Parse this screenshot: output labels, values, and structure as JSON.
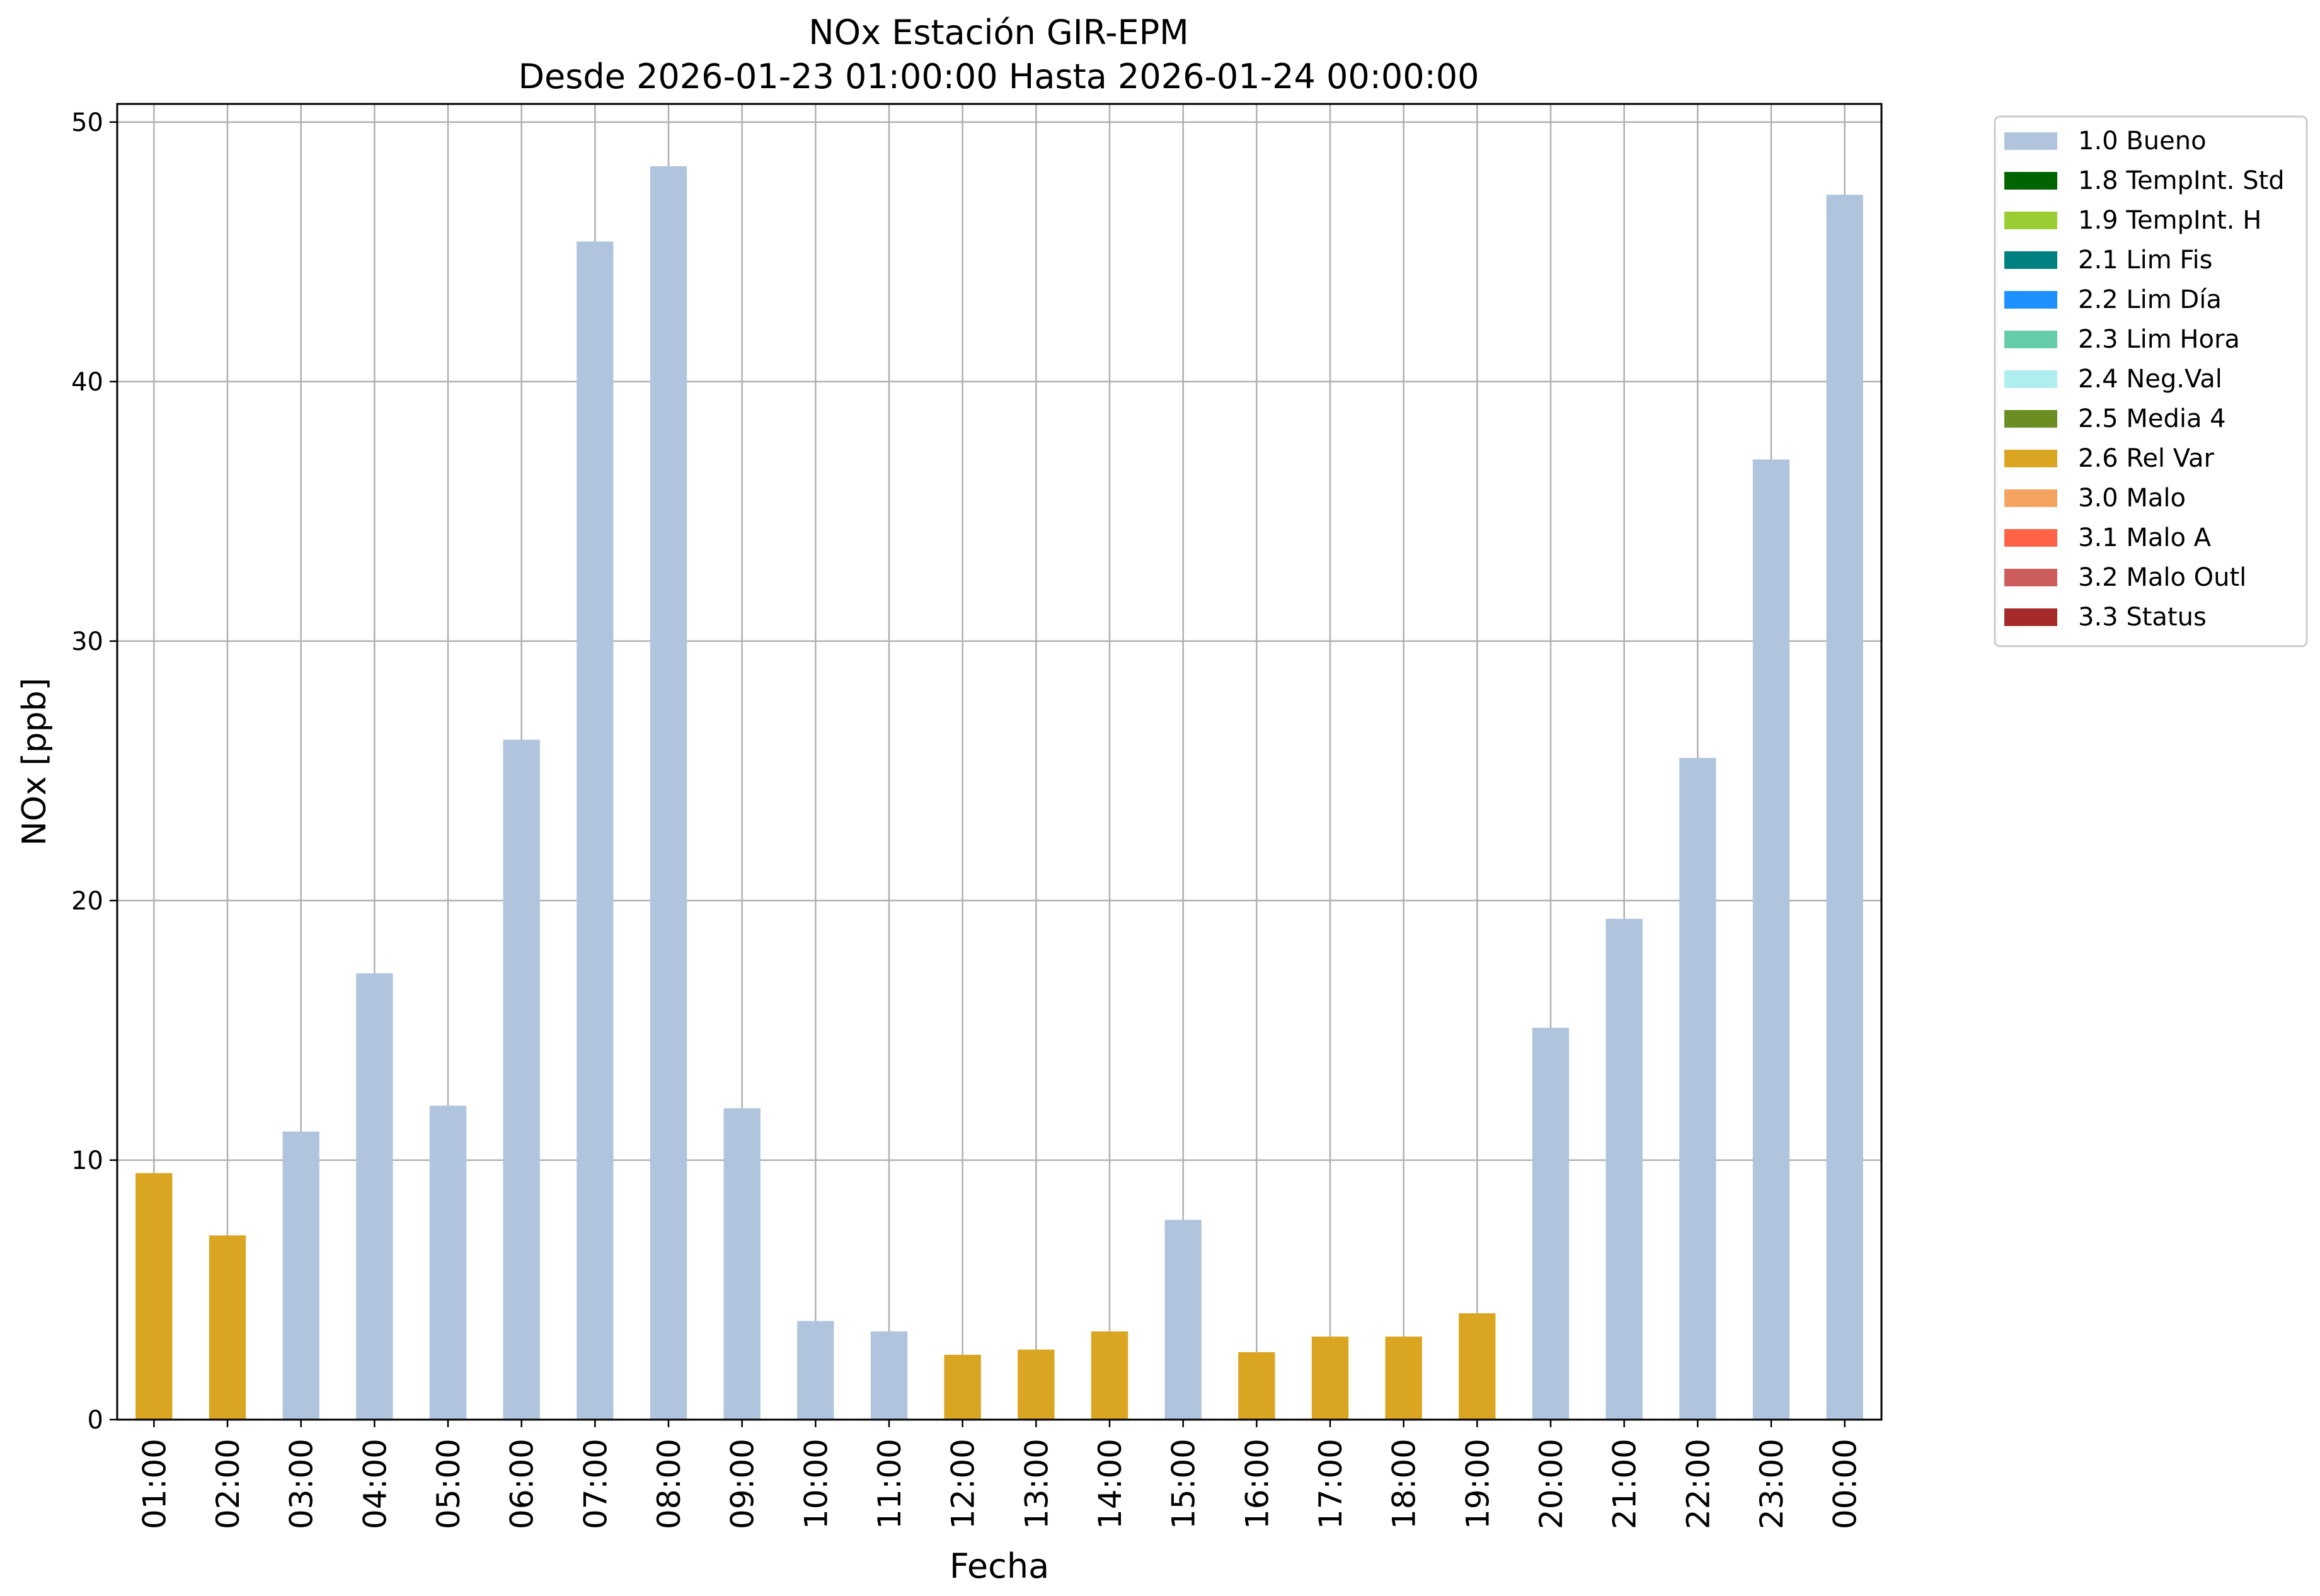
{
  "chart_data": {
    "type": "bar",
    "title": "NOx Estación GIR-EPM",
    "subtitle": "Desde 2026-01-23 01:00:00 Hasta 2026-01-24 00:00:00",
    "xlabel": "Fecha",
    "ylabel": "NOx [ppb]",
    "ylim": [
      0,
      50.7
    ],
    "yticks": [
      0,
      10,
      20,
      30,
      40,
      50
    ],
    "grid": true,
    "legend_position": "outside top-right",
    "categories": [
      "01:00",
      "02:00",
      "03:00",
      "04:00",
      "05:00",
      "06:00",
      "07:00",
      "08:00",
      "09:00",
      "10:00",
      "11:00",
      "12:00",
      "13:00",
      "14:00",
      "15:00",
      "16:00",
      "17:00",
      "18:00",
      "19:00",
      "20:00",
      "21:00",
      "22:00",
      "23:00",
      "00:00"
    ],
    "values": [
      9.5,
      7.1,
      11.1,
      17.2,
      12.1,
      26.2,
      45.4,
      48.3,
      12.0,
      3.8,
      3.4,
      2.5,
      2.7,
      3.4,
      7.7,
      2.6,
      3.2,
      3.2,
      4.1,
      15.1,
      19.3,
      25.5,
      37.0,
      47.2
    ],
    "flags": [
      "2.6 Rel Var",
      "2.6 Rel Var",
      "1.0 Bueno",
      "1.0 Bueno",
      "1.0 Bueno",
      "1.0 Bueno",
      "1.0 Bueno",
      "1.0 Bueno",
      "1.0 Bueno",
      "1.0 Bueno",
      "1.0 Bueno",
      "2.6 Rel Var",
      "2.6 Rel Var",
      "2.6 Rel Var",
      "1.0 Bueno",
      "2.6 Rel Var",
      "2.6 Rel Var",
      "2.6 Rel Var",
      "2.6 Rel Var",
      "1.0 Bueno",
      "1.0 Bueno",
      "1.0 Bueno",
      "1.0 Bueno",
      "1.0 Bueno"
    ],
    "legend": [
      {
        "label": "1.0 Bueno",
        "color": "#b0c4de"
      },
      {
        "label": "1.8 TempInt. Std",
        "color": "#006400"
      },
      {
        "label": "1.9 TempInt. H",
        "color": "#9acd32"
      },
      {
        "label": "2.1 Lim Fis",
        "color": "#008080"
      },
      {
        "label": "2.2 Lim Día",
        "color": "#1e90ff"
      },
      {
        "label": "2.3 Lim Hora",
        "color": "#66cdaa"
      },
      {
        "label": "2.4 Neg.Val",
        "color": "#afeeee"
      },
      {
        "label": "2.5 Media 4",
        "color": "#6b8e23"
      },
      {
        "label": "2.6 Rel Var",
        "color": "#daa520"
      },
      {
        "label": "3.0 Malo",
        "color": "#f4a460"
      },
      {
        "label": "3.1 Malo A",
        "color": "#ff6347"
      },
      {
        "label": "3.2 Malo Outl",
        "color": "#cd5c5c"
      },
      {
        "label": "3.3 Status",
        "color": "#a52a2a"
      }
    ]
  }
}
